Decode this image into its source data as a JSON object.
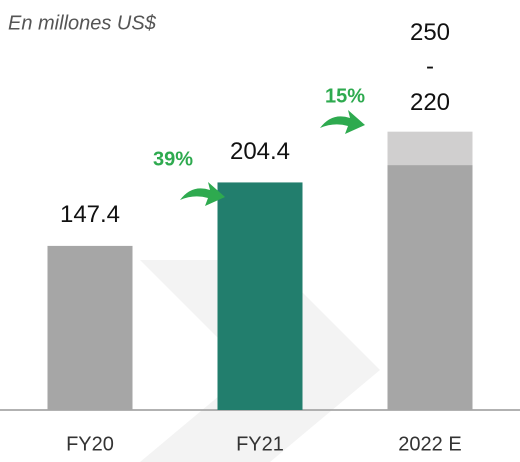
{
  "chart_data": {
    "type": "bar",
    "subtitle": "En millones US$",
    "categories": [
      "FY20",
      "FY21",
      "2022 E"
    ],
    "values": [
      147.4,
      204.4,
      220
    ],
    "range_high": [
      null,
      null,
      250
    ],
    "range_separator": "-",
    "colors": [
      "#a6a6a6",
      "#227e6d",
      "#a6a6a6"
    ],
    "range_color": "#d0cfcf",
    "growth": [
      39,
      15
    ],
    "growth_labels": [
      "39%",
      "15%"
    ],
    "growth_color": "#2eaa4f",
    "ylim": [
      0,
      300
    ]
  }
}
